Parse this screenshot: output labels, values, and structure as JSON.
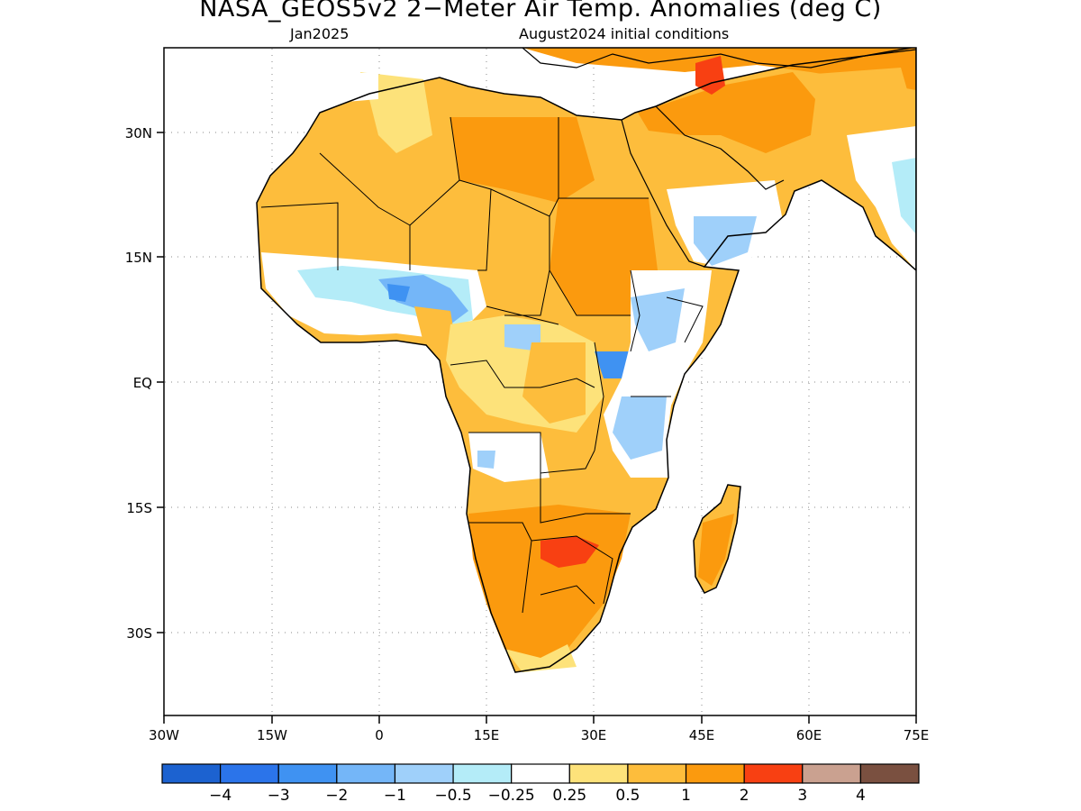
{
  "title": "NASA_GEOS5v2 2−Meter Air Temp. Anomalies (deg C)",
  "valid_month": "Jan2025",
  "init_label": "August2024 initial conditions",
  "axes": {
    "lon_ticks": [
      "30W",
      "15W",
      "0",
      "15E",
      "30E",
      "45E",
      "60E",
      "75E"
    ],
    "lat_ticks": [
      "30N",
      "15N",
      "EQ",
      "15S",
      "30S"
    ],
    "lon_range": [
      -30,
      75
    ],
    "lat_range": [
      -40,
      40
    ],
    "grid": "dotted"
  },
  "colorbar": {
    "labels": [
      "−4",
      "−3",
      "−2",
      "−1",
      "−0.5",
      "−0.25",
      "0.25",
      "0.5",
      "1",
      "2",
      "3",
      "4"
    ],
    "colors": [
      "#1c62d0",
      "#2b74ea",
      "#3f92f2",
      "#74b6f8",
      "#9fd0fa",
      "#b4ecf8",
      "#ffffff",
      "#fde27a",
      "#fdbd3c",
      "#fb9a0e",
      "#f84012",
      "#caa190",
      "#7a5040"
    ]
  },
  "map_colors": {
    "ocean": "#ffffff",
    "weak_warm": "#fde27a",
    "warm": "#fdbd3c",
    "warmer": "#fb9a0e",
    "hot": "#f84012",
    "cool": "#9fd0fa",
    "cooler": "#74b6f8",
    "cold": "#3f92f2",
    "coast": "#000000"
  }
}
